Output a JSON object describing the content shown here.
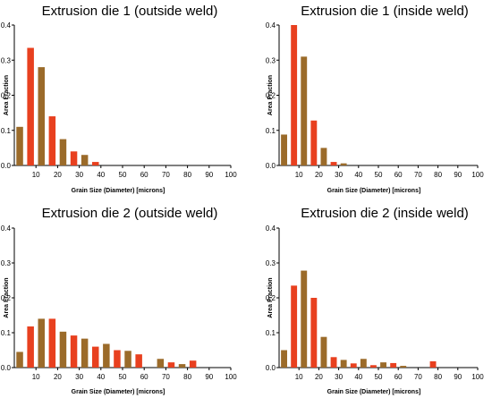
{
  "chart_data": [
    {
      "type": "bar",
      "title": "Extrusion die 1 (outside weld)",
      "xlabel": "Grain Size (Diameter) [microns]",
      "ylabel": "Area Fraction",
      "xlim": [
        0,
        100
      ],
      "ylim": [
        0,
        0.4
      ],
      "xticks": [
        "10",
        "20",
        "30",
        "40",
        "50",
        "60",
        "70",
        "80",
        "90",
        "100"
      ],
      "yticks": [
        "0.0",
        "0.1",
        "0.2",
        "0.3",
        "0.4"
      ],
      "x": [
        2.5,
        7.5,
        12.5,
        17.5,
        22.5,
        27.5,
        32.5,
        37.5
      ],
      "values": [
        0.11,
        0.335,
        0.28,
        0.14,
        0.075,
        0.04,
        0.03,
        0.01
      ]
    },
    {
      "type": "bar",
      "title": "Extrusion die 1 (inside weld)",
      "xlabel": "Grain Size (Diameter) [microns]",
      "ylabel": "Area Fraction",
      "xlim": [
        0,
        100
      ],
      "ylim": [
        0,
        0.4
      ],
      "xticks": [
        "10",
        "20",
        "30",
        "40",
        "50",
        "60",
        "70",
        "80",
        "90",
        "100"
      ],
      "yticks": [
        "0.0",
        "0.1",
        "0.2",
        "0.3",
        "0.4"
      ],
      "x": [
        2.5,
        7.5,
        12.5,
        17.5,
        22.5,
        27.5,
        32.5
      ],
      "values": [
        0.088,
        0.4,
        0.31,
        0.128,
        0.05,
        0.01,
        0.006
      ]
    },
    {
      "type": "bar",
      "title": "Extrusion die 2 (outside weld)",
      "xlabel": "Grain Size (Diameter) [microns]",
      "ylabel": "Area Fraction",
      "xlim": [
        0,
        100
      ],
      "ylim": [
        0,
        0.4
      ],
      "xticks": [
        "10",
        "20",
        "30",
        "40",
        "50",
        "60",
        "70",
        "80",
        "90",
        "100"
      ],
      "yticks": [
        "0.0",
        "0.1",
        "0.2",
        "0.3",
        "0.4"
      ],
      "x": [
        2.5,
        7.5,
        12.5,
        17.5,
        22.5,
        27.5,
        32.5,
        37.5,
        42.5,
        47.5,
        52.5,
        57.5,
        67.5,
        72.5,
        77.5,
        82.5
      ],
      "values": [
        0.045,
        0.118,
        0.14,
        0.14,
        0.103,
        0.092,
        0.083,
        0.06,
        0.068,
        0.05,
        0.048,
        0.038,
        0.025,
        0.015,
        0.01,
        0.02
      ]
    },
    {
      "type": "bar",
      "title": "Extrusion die 2 (inside weld)",
      "xlabel": "Grain Size (Diameter) [microns]",
      "ylabel": "Area Fraction",
      "xlim": [
        0,
        100
      ],
      "ylim": [
        0,
        0.4
      ],
      "xticks": [
        "10",
        "20",
        "30",
        "40",
        "50",
        "60",
        "70",
        "80",
        "90",
        "100"
      ],
      "yticks": [
        "0.0",
        "0.1",
        "0.2",
        "0.3",
        "0.4"
      ],
      "x": [
        2.5,
        7.5,
        12.5,
        17.5,
        22.5,
        27.5,
        32.5,
        37.5,
        42.5,
        47.5,
        52.5,
        57.5,
        62.5,
        77.5
      ],
      "values": [
        0.05,
        0.235,
        0.278,
        0.2,
        0.088,
        0.03,
        0.022,
        0.012,
        0.025,
        0.007,
        0.015,
        0.013,
        0.005,
        0.018
      ]
    }
  ],
  "colors": {
    "bar_primary": "#e8401f",
    "bar_secondary": "#9b6b2a",
    "axis": "#000000"
  }
}
